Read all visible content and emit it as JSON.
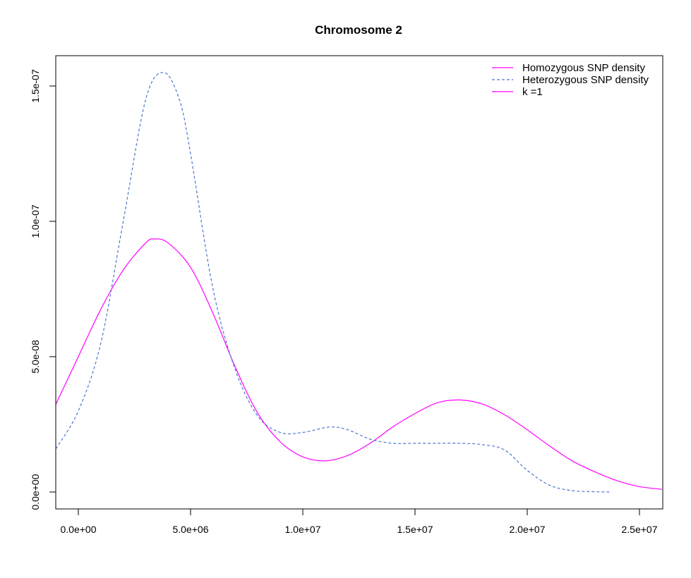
{
  "chart_data": {
    "type": "line",
    "title": "Chromosome 2",
    "xlabel": "",
    "ylabel": "",
    "xlim": [
      -1000000,
      26000000
    ],
    "ylim": [
      -6e-09,
      1.62e-07
    ],
    "x_ticks": [
      {
        "value": 0,
        "label": "0.0e+00"
      },
      {
        "value": 5000000,
        "label": "5.0e+06"
      },
      {
        "value": 10000000,
        "label": "1.0e+07"
      },
      {
        "value": 15000000,
        "label": "1.5e+07"
      },
      {
        "value": 20000000,
        "label": "2.0e+07"
      },
      {
        "value": 25000000,
        "label": "2.5e+07"
      }
    ],
    "y_ticks": [
      {
        "value": 0,
        "label": "0.0e+00"
      },
      {
        "value": 5e-08,
        "label": "5.0e-08"
      },
      {
        "value": 1e-07,
        "label": "1.0e-07"
      },
      {
        "value": 1.5e-07,
        "label": "1.5e-07"
      }
    ],
    "grid": false,
    "legend_position": "top-right",
    "legend": [
      {
        "label": "Homozygous SNP density",
        "color": "#ff00ff",
        "dash": "solid"
      },
      {
        "label": "Heterozygous SNP density",
        "color": "#4a78d0",
        "dash": "dashed"
      },
      {
        "label": "k =1",
        "color": "#ff00ff",
        "dash": "solid"
      }
    ],
    "series": [
      {
        "name": "Homozygous SNP density",
        "color": "#ff00ff",
        "dash": "solid",
        "points": [
          [
            -1000000,
            3.25e-08
          ],
          [
            0,
            5e-08
          ],
          [
            1000000,
            6.75e-08
          ],
          [
            2000000,
            8.2e-08
          ],
          [
            3000000,
            9.2e-08
          ],
          [
            3400000,
            9.35e-08
          ],
          [
            4000000,
            9.2e-08
          ],
          [
            5000000,
            8.3e-08
          ],
          [
            6000000,
            6.6e-08
          ],
          [
            7000000,
            4.6e-08
          ],
          [
            8000000,
            2.9e-08
          ],
          [
            9000000,
            1.85e-08
          ],
          [
            10000000,
            1.3e-08
          ],
          [
            11000000,
            1.15e-08
          ],
          [
            12000000,
            1.35e-08
          ],
          [
            13000000,
            1.8e-08
          ],
          [
            14000000,
            2.4e-08
          ],
          [
            15000000,
            2.9e-08
          ],
          [
            16000000,
            3.3e-08
          ],
          [
            17000000,
            3.4e-08
          ],
          [
            18000000,
            3.25e-08
          ],
          [
            19000000,
            2.85e-08
          ],
          [
            20000000,
            2.3e-08
          ],
          [
            21000000,
            1.7e-08
          ],
          [
            22000000,
            1.15e-08
          ],
          [
            23000000,
            7.5e-09
          ],
          [
            24000000,
            4.2e-09
          ],
          [
            25000000,
            2e-09
          ],
          [
            26000000,
            1e-09
          ]
        ]
      },
      {
        "name": "Heterozygous SNP density",
        "color": "#4a78d0",
        "dash": "dashed",
        "points": [
          [
            -1000000,
            1.6e-08
          ],
          [
            0,
            3e-08
          ],
          [
            1000000,
            5.5e-08
          ],
          [
            2000000,
            1e-07
          ],
          [
            3000000,
            1.45e-07
          ],
          [
            3800000,
            1.55e-07
          ],
          [
            4500000,
            1.45e-07
          ],
          [
            5000000,
            1.25e-07
          ],
          [
            6000000,
            7.5e-08
          ],
          [
            7000000,
            4.5e-08
          ],
          [
            8000000,
            2.8e-08
          ],
          [
            9000000,
            2.2e-08
          ],
          [
            10000000,
            2.2e-08
          ],
          [
            11200000,
            2.4e-08
          ],
          [
            12000000,
            2.3e-08
          ],
          [
            13000000,
            1.95e-08
          ],
          [
            14000000,
            1.8e-08
          ],
          [
            15000000,
            1.8e-08
          ],
          [
            16000000,
            1.8e-08
          ],
          [
            17000000,
            1.8e-08
          ],
          [
            18000000,
            1.75e-08
          ],
          [
            19000000,
            1.55e-08
          ],
          [
            20000000,
            8e-09
          ],
          [
            21000000,
            2.5e-09
          ],
          [
            22000000,
            5e-10
          ],
          [
            23000000,
            1e-10
          ],
          [
            23700000,
            0
          ]
        ]
      }
    ]
  }
}
